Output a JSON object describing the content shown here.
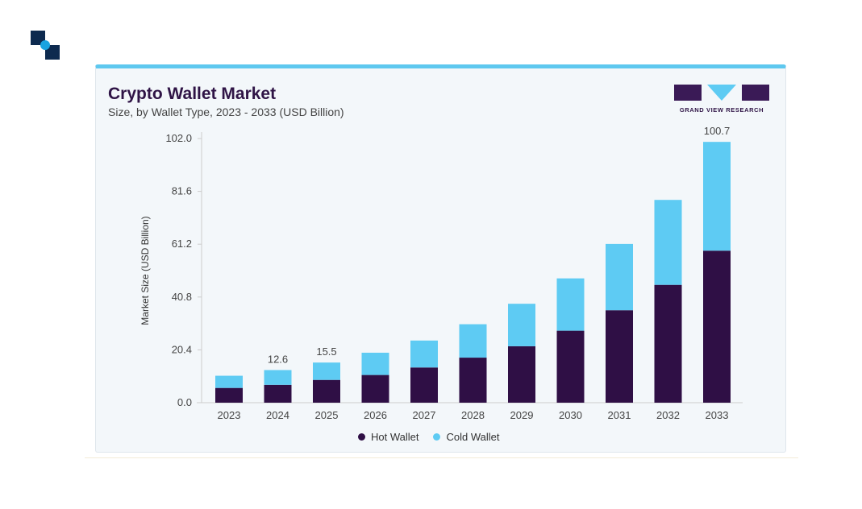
{
  "header": {
    "title": "Crypto Wallet Market",
    "subtitle": "Size, by Wallet Type, 2023 - 2033 (USD Billion)",
    "logo_text": "GRAND VIEW RESEARCH"
  },
  "colors": {
    "hot": "#2f0f45",
    "cold": "#5ecbf3",
    "accent": "#5ec8ef"
  },
  "chart_data": {
    "type": "bar",
    "stacked": true,
    "title": "Crypto Wallet Market",
    "subtitle": "Size, by Wallet Type, 2023 - 2033 (USD Billion)",
    "xlabel": "",
    "ylabel": "Market Size (USD Billion)",
    "ylim": [
      0,
      102
    ],
    "yticks": [
      "0.0",
      "20.4",
      "40.8",
      "61.2",
      "81.6",
      "102.0"
    ],
    "categories": [
      "2023",
      "2024",
      "2025",
      "2026",
      "2027",
      "2028",
      "2029",
      "2030",
      "2031",
      "2032",
      "2033"
    ],
    "series": [
      {
        "name": "Hot Wallet",
        "values": [
          5.7,
          6.9,
          8.8,
          10.7,
          13.6,
          17.4,
          21.8,
          27.8,
          35.7,
          45.5,
          58.7
        ]
      },
      {
        "name": "Cold Wallet",
        "values": [
          4.7,
          5.7,
          6.7,
          8.6,
          10.4,
          12.9,
          16.4,
          20.2,
          25.6,
          32.8,
          42.0
        ]
      }
    ],
    "data_labels": [
      {
        "category": "2024",
        "text": "12.6"
      },
      {
        "category": "2025",
        "text": "15.5"
      },
      {
        "category": "2033",
        "text": "100.7"
      }
    ],
    "legend_position": "bottom"
  }
}
